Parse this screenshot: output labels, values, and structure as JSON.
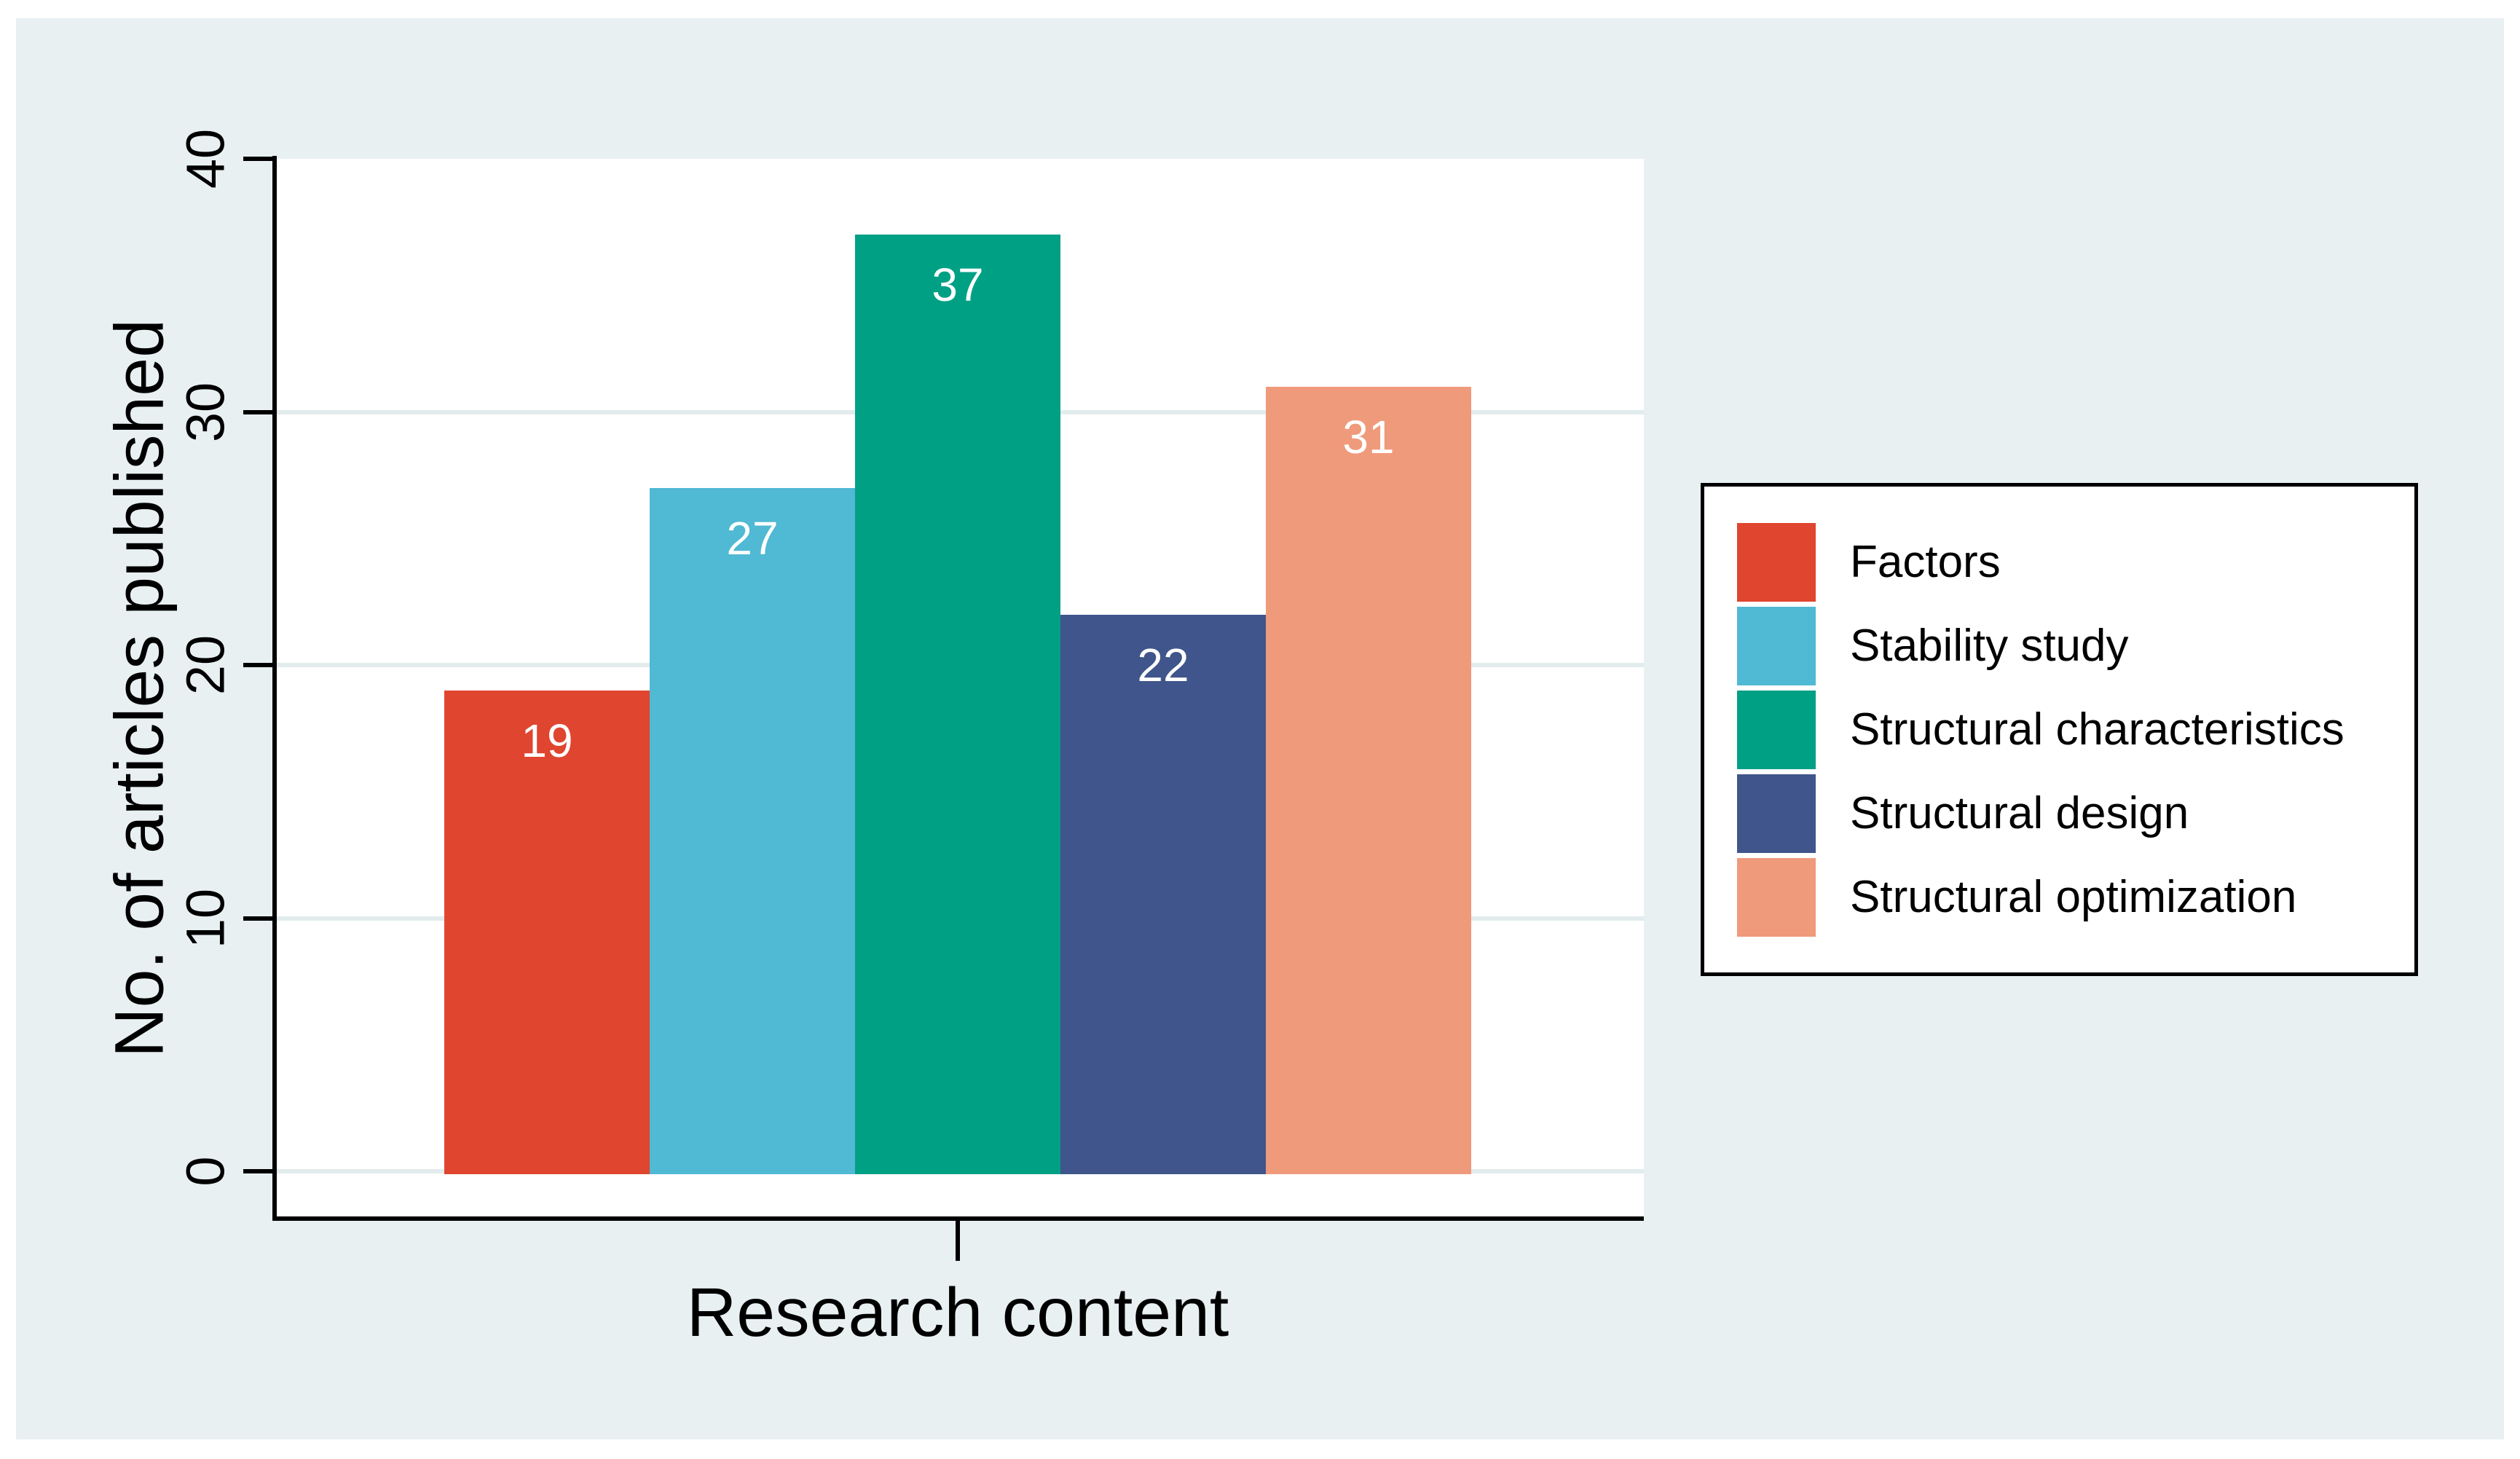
{
  "chart_data": {
    "type": "bar",
    "title": "",
    "xlabel": "Research content",
    "ylabel": "No. of articles published",
    "categories": [
      "Factors",
      "Stability study",
      "Structural characteristics",
      "Structural design",
      "Structural optimization"
    ],
    "values": [
      19,
      27,
      37,
      22,
      31
    ],
    "bar_labels": [
      "19",
      "27",
      "37",
      "22",
      "31"
    ],
    "colors": [
      "#e0452f",
      "#50b9d4",
      "#00a085",
      "#3f558b",
      "#f09a7c"
    ],
    "ylim": [
      0,
      40
    ],
    "yticks": [
      0,
      10,
      20,
      30,
      40
    ],
    "ytick_labels": [
      "0",
      "10",
      "20",
      "30",
      "40"
    ],
    "grid": true,
    "legend_position": "right",
    "bar_label_color": "#ffffff"
  },
  "figure": {
    "background_color": "#e8f0f2",
    "plot_background_color": "#ffffff",
    "gridline_color": "#e2eced",
    "axis_color": "#000000",
    "legend_border_color": "#000000"
  }
}
